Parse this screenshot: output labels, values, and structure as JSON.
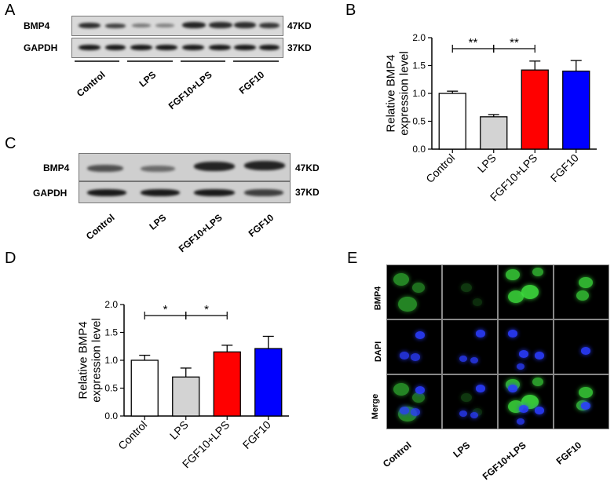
{
  "panels": {
    "A": {
      "letter": "A",
      "rows": [
        {
          "label": "BMP4",
          "size": "47KD"
        },
        {
          "label": "GAPDH",
          "size": "37KD"
        }
      ],
      "groups": [
        "Control",
        "LPS",
        "FGF10+LPS",
        "FGF10"
      ]
    },
    "B": {
      "letter": "B"
    },
    "C": {
      "letter": "C",
      "rows": [
        {
          "label": "BMP4",
          "size": "47KD"
        },
        {
          "label": "GAPDH",
          "size": "37KD"
        }
      ],
      "groups": [
        "Control",
        "LPS",
        "FGF10+LPS",
        "FGF10"
      ]
    },
    "D": {
      "letter": "D"
    },
    "E": {
      "letter": "E",
      "rows": [
        "BMP4",
        "DAPI",
        "Merge"
      ],
      "columns": [
        "Control",
        "LPS",
        "FGF10+LPS",
        "FGF10"
      ]
    }
  },
  "chart_data": [
    {
      "panel": "B",
      "type": "bar",
      "ylabel": "Relative BMP4\nexpression level",
      "ylim": [
        0,
        2.0
      ],
      "yticks": [
        "0.0",
        "0.5",
        "1.0",
        "1.5",
        "2.0"
      ],
      "categories": [
        "Control",
        "LPS",
        "FGF10+LPS",
        "FGF10"
      ],
      "values": [
        1.0,
        0.58,
        1.42,
        1.4
      ],
      "errors": [
        0.04,
        0.04,
        0.16,
        0.19
      ],
      "colors": [
        "#ffffff",
        "#d3d3d3",
        "#ff0000",
        "#0000ff"
      ],
      "significance": [
        {
          "from": 0,
          "to": 1,
          "label": "**"
        },
        {
          "from": 1,
          "to": 2,
          "label": "**"
        }
      ]
    },
    {
      "panel": "D",
      "type": "bar",
      "ylabel": "Relative BMP4\nexpression level",
      "ylim": [
        0,
        2.0
      ],
      "yticks": [
        "0.0",
        "0.5",
        "1.0",
        "1.5",
        "2.0"
      ],
      "categories": [
        "Control",
        "LPS",
        "FGF10+LPS",
        "FGF10"
      ],
      "values": [
        1.0,
        0.7,
        1.15,
        1.21
      ],
      "errors": [
        0.09,
        0.16,
        0.12,
        0.22
      ],
      "colors": [
        "#ffffff",
        "#d3d3d3",
        "#ff0000",
        "#0000ff"
      ],
      "significance": [
        {
          "from": 0,
          "to": 1,
          "label": "*"
        },
        {
          "from": 1,
          "to": 2,
          "label": "*"
        }
      ]
    }
  ]
}
